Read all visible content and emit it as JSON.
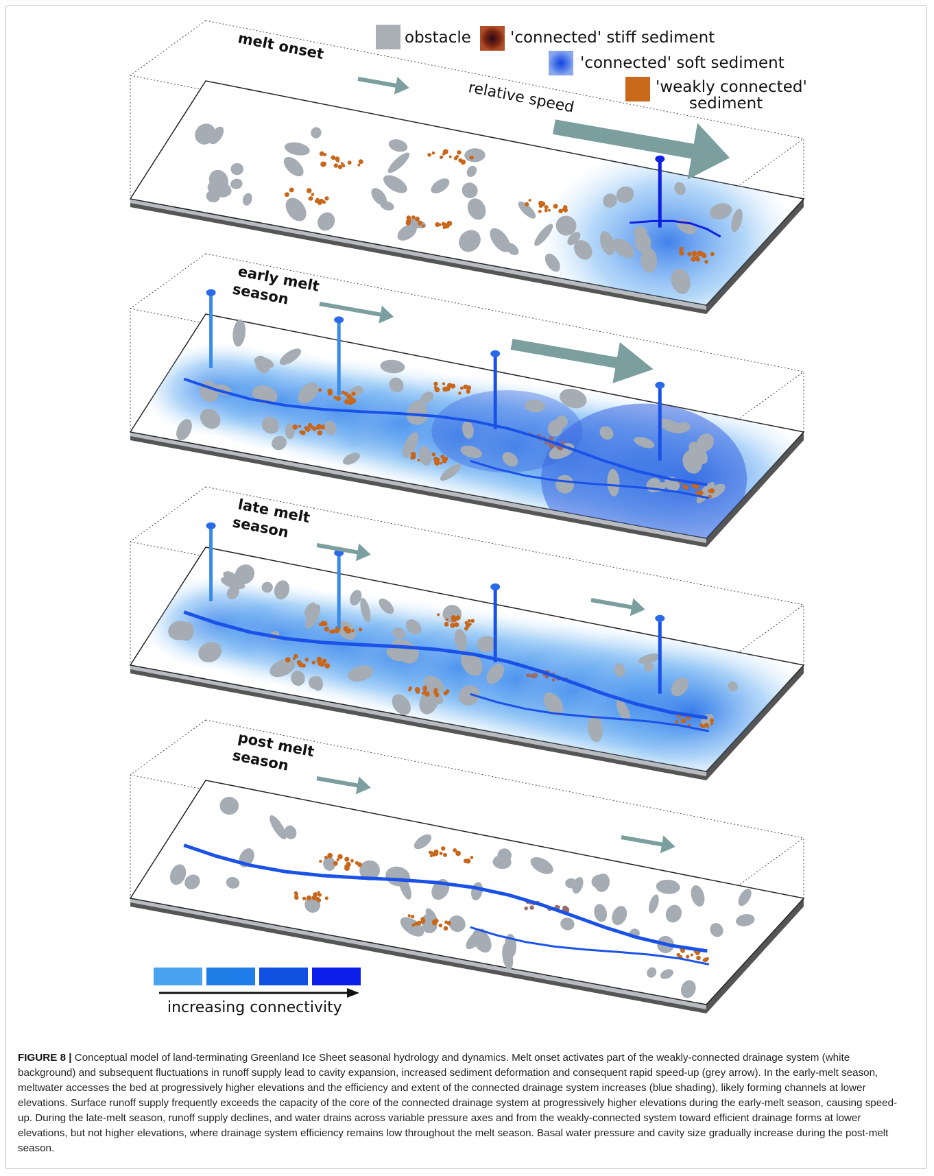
{
  "legend": {
    "obstacle": "obstacle",
    "stiff": "'connected' stiff sediment",
    "soft": "'connected' soft sediment",
    "weak_line1": "'weakly connected'",
    "weak_line2": "sediment",
    "colors": {
      "obstacle": "#a8aeb4",
      "stiff": "#7a2410",
      "soft": "#3a62d6",
      "weak": "#c96a1a"
    }
  },
  "relative_speed": "relative speed",
  "panels": [
    {
      "line1": "melt onset",
      "line2": ""
    },
    {
      "line1": "early melt",
      "line2": "season"
    },
    {
      "line1": "late melt",
      "line2": "season"
    },
    {
      "line1": "post melt",
      "line2": "season"
    }
  ],
  "connectivity": {
    "label": "increasing connectivity",
    "colors": [
      "#4aa3f0",
      "#1f7de8",
      "#1050e0",
      "#0b1fe8"
    ]
  },
  "colors": {
    "arrow": "#7b9e9e",
    "channel": "#1a2fe0",
    "sediment": "#c8661a",
    "obstacle": "#a5acb3"
  },
  "caption": {
    "label": "FIGURE 8 |",
    "text": "Conceptual model of land-terminating Greenland Ice Sheet seasonal hydrology and dynamics. Melt onset activates part of the weakly-connected drainage system (white background) and subsequent fluctuations in runoff supply lead to cavity expansion, increased sediment deformation and consequent rapid speed-up (grey arrow). In the early-melt season, meltwater accesses the bed at progressively higher elevations and the efficiency and extent of the connected drainage system increases (blue shading), likely forming channels at lower elevations. Surface runoff supply frequently exceeds the capacity of the core of the connected drainage system at progressively higher elevations during the early-melt season, causing speed-up. During the late-melt season, runoff supply declines, and water drains across variable pressure axes and from the weakly-connected system toward efficient drainage forms at lower elevations, but not higher elevations, where drainage system efficiency remains low throughout the melt season. Basal water pressure and cavity size gradually increase during the post-melt season."
  }
}
